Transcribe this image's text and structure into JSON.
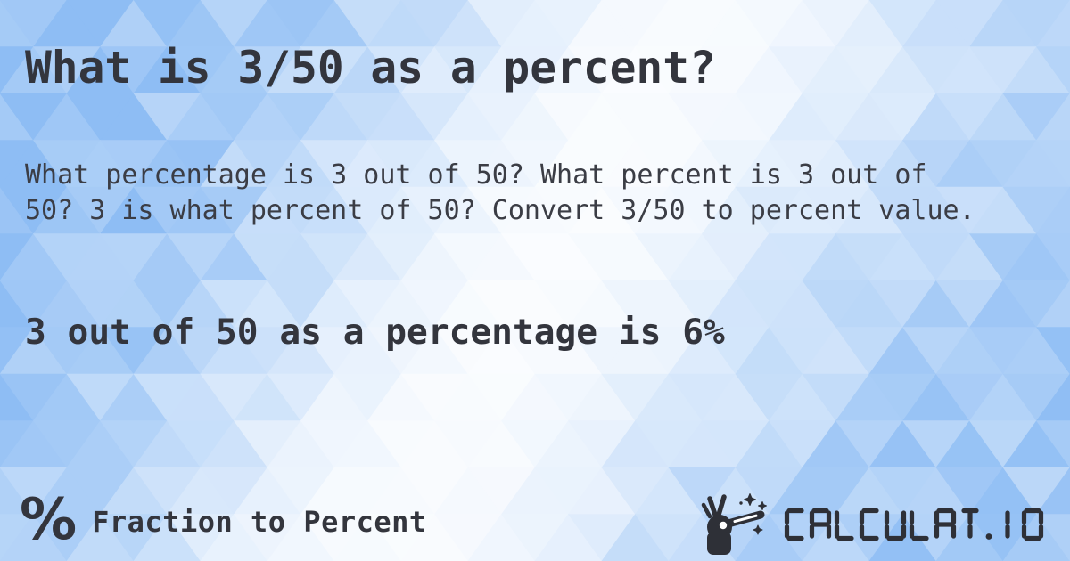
{
  "content": {
    "title": "What is 3/50 as a percent?",
    "description": "What percentage is 3 out of 50? What percent is 3 out of 50? 3 is what percent of 50? Convert 3/50 to percent value.",
    "answer": "3 out of 50 as a percentage is 6%"
  },
  "footer": {
    "category_icon_glyph": "%",
    "category_label": "Fraction to Percent",
    "logo_icon": "magic-wand-hand-icon",
    "logo_text": "CALCULAT.IO"
  },
  "colors": {
    "ink": "#33353d",
    "body_ink": "#3b3d45",
    "logo_ink": "#2e3037",
    "pattern_blue": "#8ebdf4",
    "pattern_white": "#ffffff"
  }
}
